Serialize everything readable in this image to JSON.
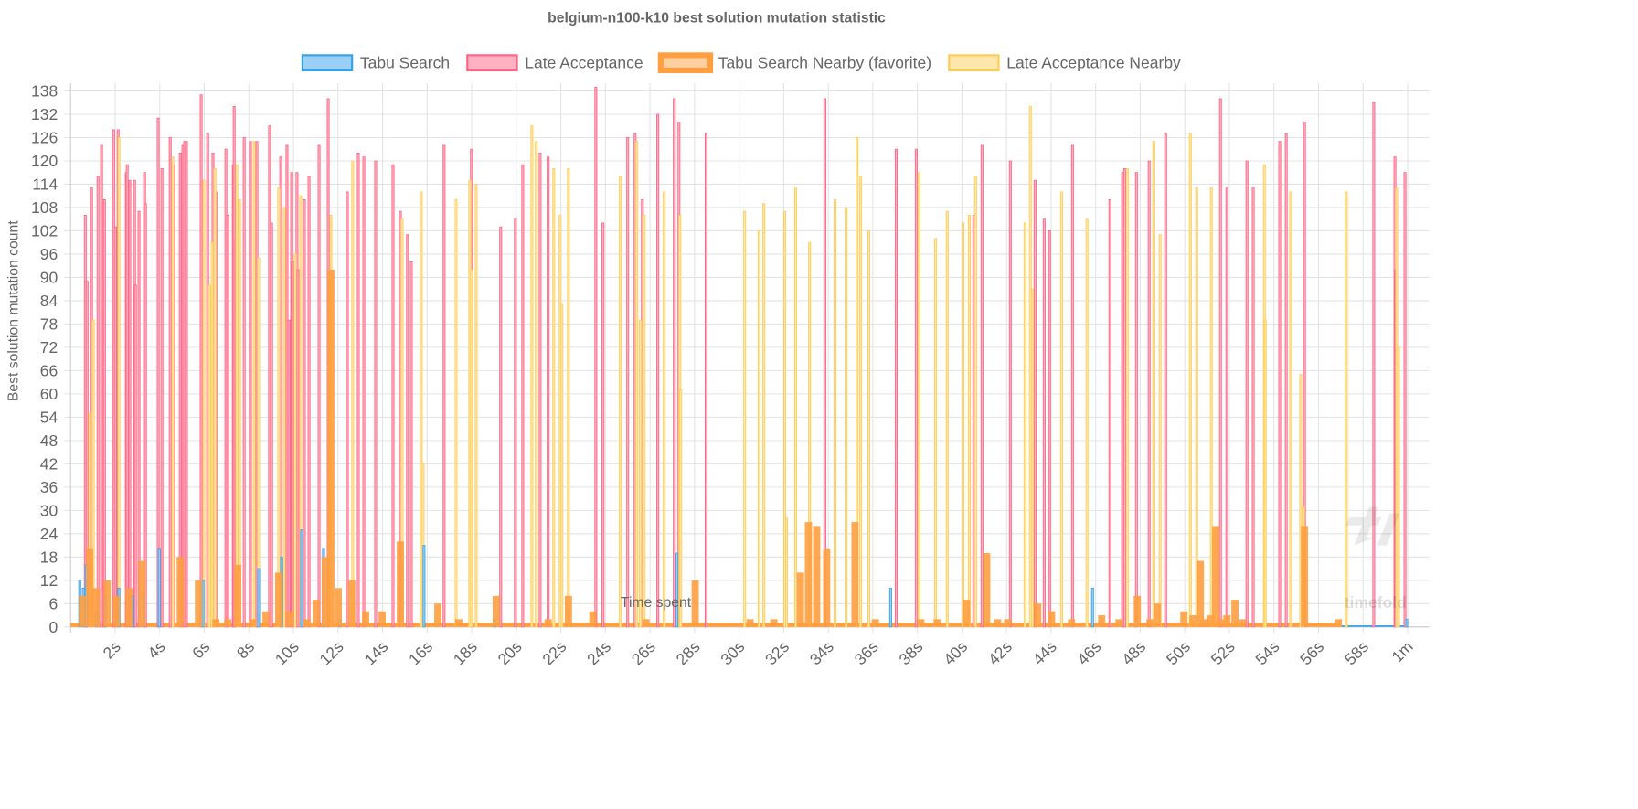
{
  "chart_data": {
    "type": "bar",
    "title": "belgium-n100-k10 best solution mutation statistic",
    "xlabel": "Time spent",
    "ylabel": "Best solution mutation count",
    "xlim_seconds": [
      0,
      61
    ],
    "ylim": [
      0,
      140
    ],
    "x_ticks": [
      {
        "t": 2,
        "label": "2s"
      },
      {
        "t": 4,
        "label": "4s"
      },
      {
        "t": 6,
        "label": "6s"
      },
      {
        "t": 8,
        "label": "8s"
      },
      {
        "t": 10,
        "label": "10s"
      },
      {
        "t": 12,
        "label": "12s"
      },
      {
        "t": 14,
        "label": "14s"
      },
      {
        "t": 16,
        "label": "16s"
      },
      {
        "t": 18,
        "label": "18s"
      },
      {
        "t": 20,
        "label": "20s"
      },
      {
        "t": 22,
        "label": "22s"
      },
      {
        "t": 24,
        "label": "24s"
      },
      {
        "t": 26,
        "label": "26s"
      },
      {
        "t": 28,
        "label": "28s"
      },
      {
        "t": 30,
        "label": "30s"
      },
      {
        "t": 32,
        "label": "32s"
      },
      {
        "t": 34,
        "label": "34s"
      },
      {
        "t": 36,
        "label": "36s"
      },
      {
        "t": 38,
        "label": "38s"
      },
      {
        "t": 40,
        "label": "40s"
      },
      {
        "t": 42,
        "label": "42s"
      },
      {
        "t": 44,
        "label": "44s"
      },
      {
        "t": 46,
        "label": "46s"
      },
      {
        "t": 48,
        "label": "48s"
      },
      {
        "t": 50,
        "label": "50s"
      },
      {
        "t": 52,
        "label": "52s"
      },
      {
        "t": 54,
        "label": "54s"
      },
      {
        "t": 56,
        "label": "56s"
      },
      {
        "t": 58,
        "label": "58s"
      },
      {
        "t": 60,
        "label": "1m"
      }
    ],
    "y_ticks": [
      0,
      6,
      12,
      18,
      24,
      30,
      36,
      42,
      48,
      54,
      60,
      66,
      72,
      78,
      84,
      90,
      96,
      102,
      108,
      114,
      120,
      126,
      132,
      138
    ],
    "grid": true,
    "legend_position": "top",
    "watermark": "timefold",
    "series": [
      {
        "name": "Tabu Search",
        "color": "#36a2eb",
        "fill": "#9ad0f5",
        "points": [
          [
            0.41,
            12
          ],
          [
            0.57,
            10
          ],
          [
            0.7,
            16
          ],
          [
            1.15,
            4
          ],
          [
            1.56,
            8
          ],
          [
            2.17,
            10
          ],
          [
            2.79,
            8
          ],
          [
            3.28,
            9
          ],
          [
            3.98,
            20
          ],
          [
            5.94,
            12
          ],
          [
            8.44,
            15
          ],
          [
            9.47,
            18
          ],
          [
            10.37,
            25
          ],
          [
            11.35,
            20
          ],
          [
            12.09,
            2
          ],
          [
            15.86,
            21
          ],
          [
            19.02,
            2
          ],
          [
            27.21,
            19
          ],
          [
            36.8,
            10
          ],
          [
            45.86,
            10
          ],
          [
            59.96,
            2
          ]
        ]
      },
      {
        "name": "Late Acceptance",
        "color": "#ff6384",
        "fill": "#ffb1c1",
        "points": [
          [
            0.66,
            106
          ],
          [
            0.74,
            89
          ],
          [
            0.94,
            113
          ],
          [
            1.23,
            116
          ],
          [
            1.39,
            124
          ],
          [
            1.52,
            110
          ],
          [
            1.93,
            128
          ],
          [
            2.01,
            103
          ],
          [
            2.13,
            128
          ],
          [
            2.5,
            117
          ],
          [
            2.54,
            119
          ],
          [
            2.66,
            115
          ],
          [
            2.87,
            115
          ],
          [
            2.91,
            88
          ],
          [
            3.07,
            107
          ],
          [
            3.32,
            117
          ],
          [
            3.36,
            109
          ],
          [
            3.93,
            131
          ],
          [
            4.1,
            118
          ],
          [
            4.47,
            126
          ],
          [
            4.63,
            119
          ],
          [
            4.92,
            122
          ],
          [
            5.04,
            124
          ],
          [
            5.12,
            125
          ],
          [
            5.2,
            125
          ],
          [
            5.86,
            137
          ],
          [
            6.15,
            127
          ],
          [
            6.39,
            122
          ],
          [
            6.52,
            112
          ],
          [
            6.97,
            123
          ],
          [
            7.05,
            106
          ],
          [
            7.3,
            119
          ],
          [
            7.34,
            134
          ],
          [
            7.42,
            100
          ],
          [
            7.79,
            126
          ],
          [
            8.07,
            125
          ],
          [
            8.36,
            125
          ],
          [
            8.93,
            129
          ],
          [
            9.02,
            104
          ],
          [
            9.43,
            121
          ],
          [
            9.71,
            124
          ],
          [
            9.8,
            79
          ],
          [
            9.92,
            117
          ],
          [
            9.96,
            94
          ],
          [
            10.16,
            117
          ],
          [
            10.2,
            92
          ],
          [
            10.49,
            110
          ],
          [
            10.7,
            116
          ],
          [
            11.15,
            124
          ],
          [
            11.56,
            136
          ],
          [
            12.42,
            112
          ],
          [
            12.91,
            122
          ],
          [
            13.16,
            121
          ],
          [
            13.69,
            120
          ],
          [
            14.47,
            119
          ],
          [
            14.8,
            107
          ],
          [
            15.12,
            101
          ],
          [
            15.29,
            94
          ],
          [
            16.76,
            124
          ],
          [
            17.99,
            123
          ],
          [
            19.3,
            103
          ],
          [
            19.96,
            105
          ],
          [
            20.29,
            119
          ],
          [
            21.07,
            122
          ],
          [
            21.43,
            121
          ],
          [
            23.57,
            139
          ],
          [
            23.89,
            104
          ],
          [
            25,
            126
          ],
          [
            25.33,
            127
          ],
          [
            25.66,
            110
          ],
          [
            26.35,
            132
          ],
          [
            27.09,
            136
          ],
          [
            27.3,
            130
          ],
          [
            28.52,
            127
          ],
          [
            33.85,
            136
          ],
          [
            37.05,
            123
          ],
          [
            37.95,
            123
          ],
          [
            40.53,
            106
          ],
          [
            40.9,
            124
          ],
          [
            42.17,
            120
          ],
          [
            43.28,
            115
          ],
          [
            43.69,
            105
          ],
          [
            43.93,
            102
          ],
          [
            44.96,
            124
          ],
          [
            46.64,
            110
          ],
          [
            47.21,
            117
          ],
          [
            47.3,
            118
          ],
          [
            47.83,
            117
          ],
          [
            48.4,
            120
          ],
          [
            49.14,
            127
          ],
          [
            51.6,
            136
          ],
          [
            51.89,
            113
          ],
          [
            52.79,
            120
          ],
          [
            53.07,
            113
          ],
          [
            54.26,
            125
          ],
          [
            54.55,
            127
          ],
          [
            55.37,
            130
          ],
          [
            58.48,
            135
          ],
          [
            59.43,
            121
          ],
          [
            59.47,
            92
          ],
          [
            59.88,
            117
          ]
        ]
      },
      {
        "name": "Tabu Search Nearby (favorite)",
        "color": "#ff9f40",
        "fill": "#ffcf9f",
        "favorite": true,
        "points": [
          [
            0.53,
            8
          ],
          [
            0.86,
            20
          ],
          [
            1.15,
            10
          ],
          [
            1.64,
            12
          ],
          [
            2.05,
            8
          ],
          [
            2.62,
            10
          ],
          [
            3.2,
            17
          ],
          [
            4.92,
            18
          ],
          [
            5.74,
            12
          ],
          [
            6.52,
            2
          ],
          [
            7.05,
            2
          ],
          [
            7.5,
            16
          ],
          [
            8.16,
            2
          ],
          [
            8.77,
            4
          ],
          [
            9.34,
            14
          ],
          [
            9.84,
            4
          ],
          [
            10.61,
            2
          ],
          [
            11.02,
            7
          ],
          [
            11.43,
            18
          ],
          [
            11.68,
            92
          ],
          [
            12.01,
            10
          ],
          [
            12.62,
            12
          ],
          [
            13.24,
            4
          ],
          [
            13.98,
            4
          ],
          [
            14.8,
            22
          ],
          [
            16.48,
            6
          ],
          [
            17.42,
            2
          ],
          [
            19.1,
            8
          ],
          [
            21.43,
            2
          ],
          [
            22.34,
            8
          ],
          [
            23.44,
            4
          ],
          [
            25.82,
            2
          ],
          [
            28.03,
            12
          ],
          [
            30.49,
            2
          ],
          [
            31.56,
            2
          ],
          [
            32.75,
            14
          ],
          [
            33.11,
            27
          ],
          [
            33.48,
            26
          ],
          [
            33.93,
            20
          ],
          [
            35.2,
            27
          ],
          [
            36.11,
            2
          ],
          [
            38.16,
            2
          ],
          [
            38.89,
            2
          ],
          [
            40.2,
            7
          ],
          [
            41.11,
            19
          ],
          [
            41.6,
            2
          ],
          [
            42.05,
            2
          ],
          [
            43.4,
            6
          ],
          [
            44.02,
            4
          ],
          [
            44.92,
            2
          ],
          [
            46.27,
            3
          ],
          [
            47.05,
            2
          ],
          [
            47.87,
            8
          ],
          [
            48.44,
            2
          ],
          [
            48.77,
            6
          ],
          [
            49.96,
            4
          ],
          [
            50.37,
            3
          ],
          [
            50.7,
            17
          ],
          [
            50.94,
            2
          ],
          [
            51.15,
            3
          ],
          [
            51.39,
            26
          ],
          [
            51.6,
            2
          ],
          [
            51.89,
            3
          ],
          [
            52.25,
            7
          ],
          [
            52.58,
            2
          ],
          [
            55.37,
            26
          ],
          [
            56.89,
            2
          ]
        ]
      },
      {
        "name": "Late Acceptance Nearby",
        "color": "#ffcd56",
        "fill": "#ffe6aa",
        "points": [
          [
            0.86,
            55
          ],
          [
            1.02,
            79
          ],
          [
            2.17,
            126
          ],
          [
            4.59,
            121
          ],
          [
            5.98,
            115
          ],
          [
            6.23,
            88
          ],
          [
            6.35,
            99
          ],
          [
            6.48,
            118
          ],
          [
            7.46,
            119
          ],
          [
            7.58,
            110
          ],
          [
            8.24,
            125
          ],
          [
            8.44,
            95
          ],
          [
            9.34,
            113
          ],
          [
            9.59,
            108
          ],
          [
            10.08,
            96
          ],
          [
            10.33,
            111
          ],
          [
            11.68,
            106
          ],
          [
            12.66,
            120
          ],
          [
            14.88,
            105
          ],
          [
            15.74,
            112
          ],
          [
            15.82,
            42
          ],
          [
            17.3,
            110
          ],
          [
            17.91,
            115
          ],
          [
            17.99,
            92
          ],
          [
            18.2,
            114
          ],
          [
            20.7,
            129
          ],
          [
            20.9,
            125
          ],
          [
            21.68,
            118
          ],
          [
            21.97,
            106
          ],
          [
            22.05,
            83
          ],
          [
            22.34,
            118
          ],
          [
            24.67,
            116
          ],
          [
            25.41,
            125
          ],
          [
            25.57,
            79
          ],
          [
            25.74,
            106
          ],
          [
            26.64,
            112
          ],
          [
            27.34,
            106
          ],
          [
            27.38,
            61
          ],
          [
            30.25,
            107
          ],
          [
            30.9,
            102
          ],
          [
            31.11,
            109
          ],
          [
            32.05,
            107
          ],
          [
            32.13,
            28
          ],
          [
            32.54,
            113
          ],
          [
            33.16,
            99
          ],
          [
            34.3,
            110
          ],
          [
            34.8,
            108
          ],
          [
            35.29,
            126
          ],
          [
            35.45,
            116
          ],
          [
            35.82,
            102
          ],
          [
            38.07,
            117
          ],
          [
            38.81,
            100
          ],
          [
            39.34,
            107
          ],
          [
            40.04,
            104
          ],
          [
            40.33,
            106
          ],
          [
            40.61,
            116
          ],
          [
            42.83,
            104
          ],
          [
            43.07,
            134
          ],
          [
            43.16,
            87
          ],
          [
            44.47,
            112
          ],
          [
            45.61,
            105
          ],
          [
            47.42,
            118
          ],
          [
            48.61,
            125
          ],
          [
            48.89,
            101
          ],
          [
            50.25,
            127
          ],
          [
            50.53,
            113
          ],
          [
            51.19,
            113
          ],
          [
            53.57,
            119
          ],
          [
            53.61,
            79
          ],
          [
            54.75,
            112
          ],
          [
            55.2,
            65
          ],
          [
            55.33,
            31
          ],
          [
            57.25,
            112
          ],
          [
            59.51,
            113
          ],
          [
            59.59,
            72
          ]
        ]
      }
    ]
  }
}
